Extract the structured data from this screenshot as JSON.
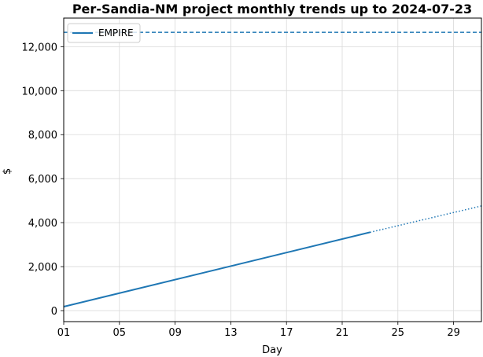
{
  "chart_data": {
    "type": "line",
    "title": "Per-Sandia-NM project monthly trends up to 2024-07-23",
    "xlabel": "Day",
    "ylabel": "$",
    "xlim": [
      1,
      31
    ],
    "ylim": [
      -500,
      13300
    ],
    "x_ticks": [
      {
        "value": 1,
        "label": "01"
      },
      {
        "value": 5,
        "label": "05"
      },
      {
        "value": 9,
        "label": "09"
      },
      {
        "value": 13,
        "label": "13"
      },
      {
        "value": 17,
        "label": "17"
      },
      {
        "value": 21,
        "label": "21"
      },
      {
        "value": 25,
        "label": "25"
      },
      {
        "value": 29,
        "label": "29"
      }
    ],
    "y_ticks": [
      {
        "value": 0,
        "label": "0"
      },
      {
        "value": 2000,
        "label": "2,000"
      },
      {
        "value": 4000,
        "label": "4,000"
      },
      {
        "value": 6000,
        "label": "6,000"
      },
      {
        "value": 8000,
        "label": "8,000"
      },
      {
        "value": 10000,
        "label": "10,000"
      },
      {
        "value": 12000,
        "label": "12,000"
      }
    ],
    "grid": true,
    "legend_position": "top-left",
    "series": [
      {
        "name": "EMPIRE",
        "color": "#1f77b4",
        "actual": {
          "x": [
            1,
            23
          ],
          "y": [
            180,
            3560
          ]
        },
        "projection": {
          "x": [
            23,
            31
          ],
          "y": [
            3560,
            4760
          ]
        },
        "budget": 12650
      }
    ]
  }
}
